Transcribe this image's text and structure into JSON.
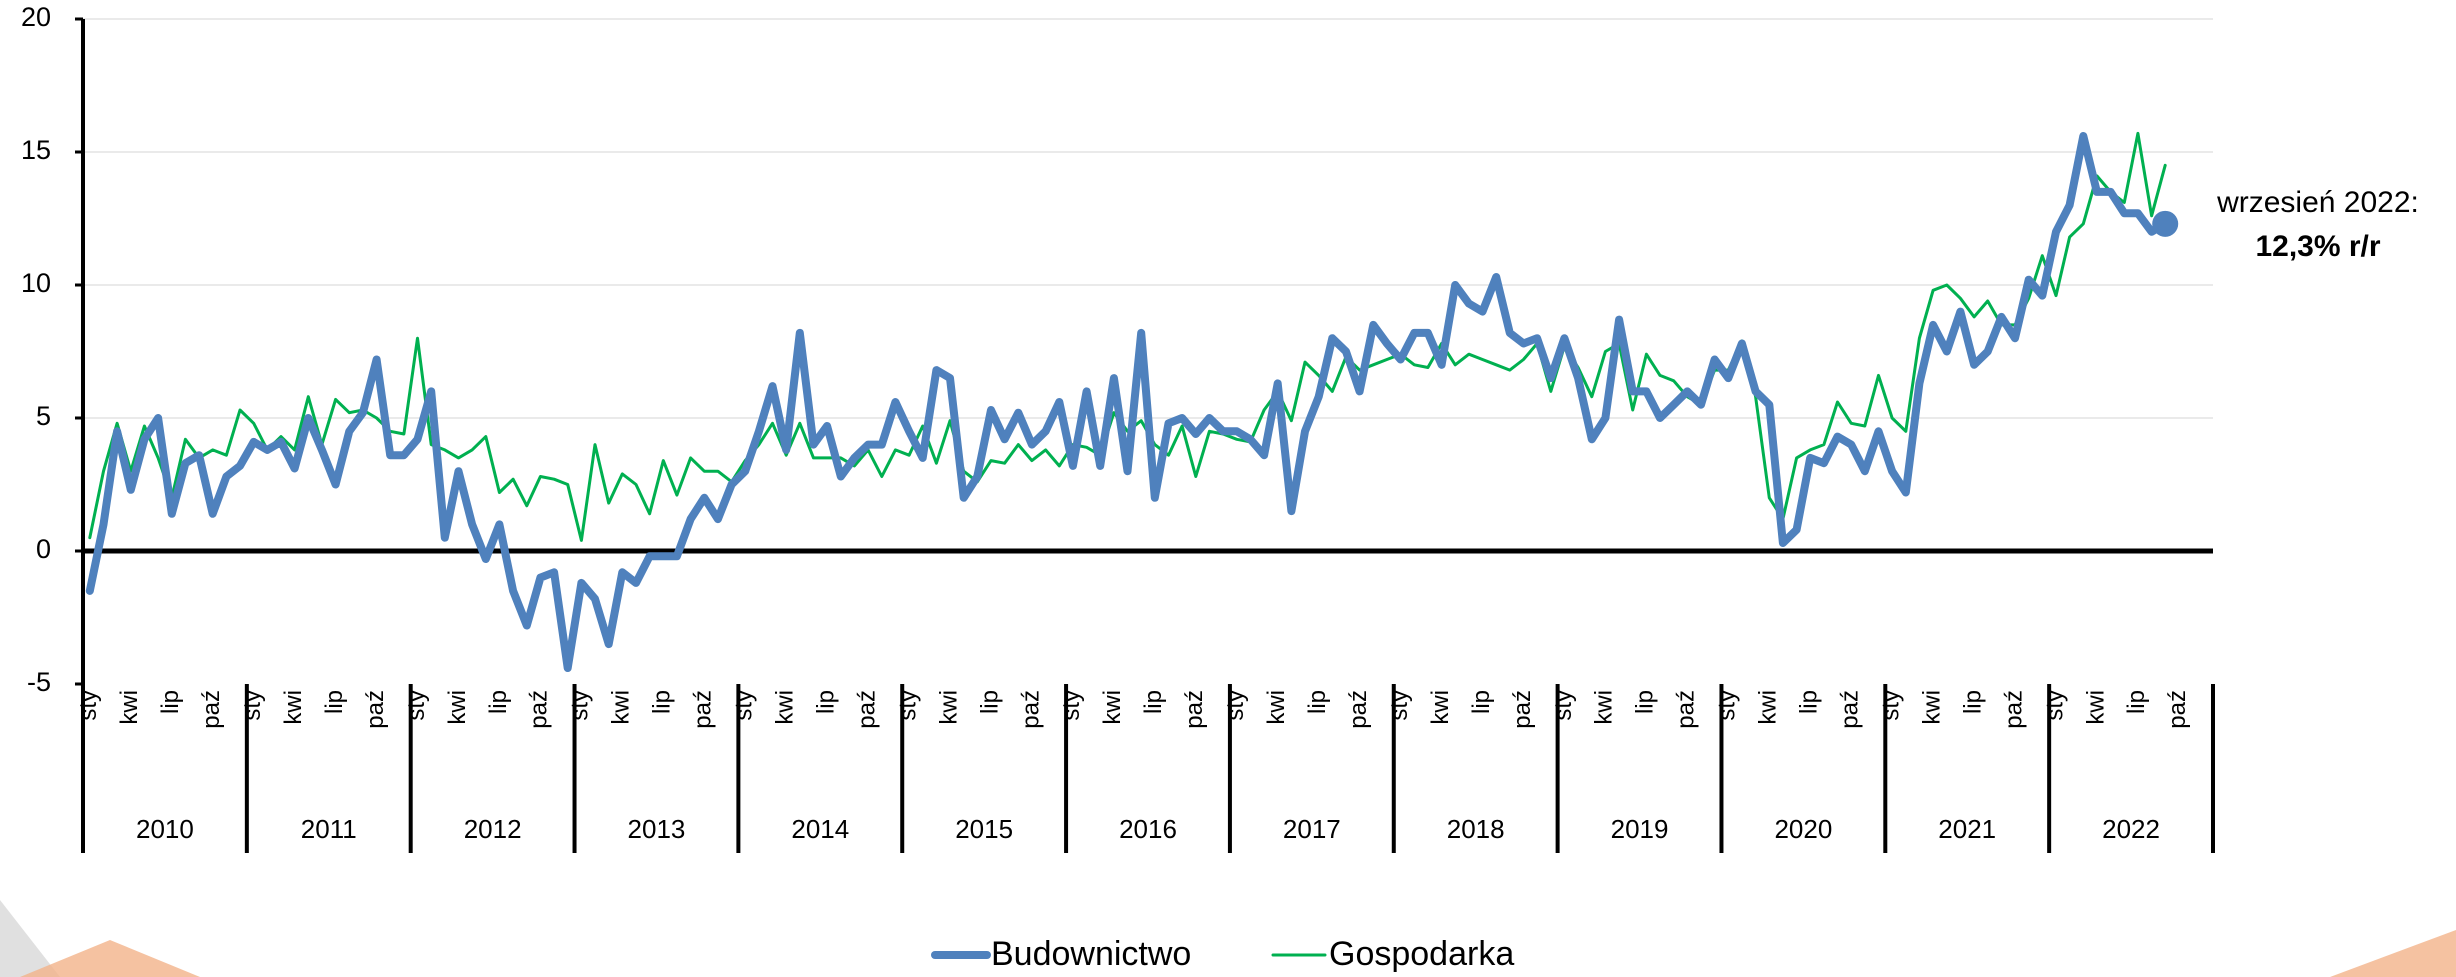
{
  "chart_data": {
    "type": "line",
    "categories": [
      "sty",
      null,
      null,
      "kwi",
      null,
      null,
      "lip",
      null,
      null,
      "paź",
      null,
      null,
      "sty",
      null,
      null,
      "kwi",
      null,
      null,
      "lip",
      null,
      null,
      "paź",
      null,
      null,
      "sty",
      null,
      null,
      "kwi",
      null,
      null,
      "lip",
      null,
      null,
      "paź",
      null,
      null,
      "sty",
      null,
      null,
      "kwi",
      null,
      null,
      "lip",
      null,
      null,
      "paź",
      null,
      null,
      "sty",
      null,
      null,
      "kwi",
      null,
      null,
      "lip",
      null,
      null,
      "paź",
      null,
      null,
      "sty",
      null,
      null,
      "kwi",
      null,
      null,
      "lip",
      null,
      null,
      "paź",
      null,
      null,
      "sty",
      null,
      null,
      "kwi",
      null,
      null,
      "lip",
      null,
      null,
      "paź",
      null,
      null,
      "sty",
      null,
      null,
      "kwi",
      null,
      null,
      "lip",
      null,
      null,
      "paź",
      null,
      null,
      "sty",
      null,
      null,
      "kwi",
      null,
      null,
      "lip",
      null,
      null,
      "paź",
      null,
      null,
      "sty",
      null,
      null,
      "kwi",
      null,
      null,
      "lip",
      null,
      null,
      "paź",
      null,
      null,
      "sty",
      null,
      null,
      "kwi",
      null,
      null,
      "lip",
      null,
      null,
      "paź",
      null,
      null,
      "sty",
      null,
      null,
      "kwi",
      null,
      null,
      "lip",
      null,
      null,
      "paź",
      null,
      null,
      "sty",
      null,
      null,
      "kwi",
      null,
      null,
      "lip",
      null,
      null,
      "paź",
      null,
      null
    ],
    "year_groups": [
      "2010",
      "2011",
      "2012",
      "2013",
      "2014",
      "2015",
      "2016",
      "2017",
      "2018",
      "2019",
      "2020",
      "2021",
      "2022"
    ],
    "series": [
      {
        "name": "Budownictwo",
        "color": "#4f81bd",
        "values": [
          -1.5,
          1.0,
          4.5,
          2.3,
          4.2,
          5.0,
          1.4,
          3.3,
          3.6,
          1.4,
          2.8,
          3.2,
          4.1,
          3.8,
          4.1,
          3.1,
          5.0,
          3.8,
          2.5,
          4.5,
          5.2,
          7.2,
          3.6,
          3.6,
          4.2,
          6.0,
          0.5,
          3.0,
          1.0,
          -0.3,
          1.0,
          -1.5,
          -2.8,
          -1.0,
          -0.8,
          -4.4,
          -1.2,
          -1.8,
          -3.5,
          -0.8,
          -1.2,
          -0.2,
          -0.2,
          -0.2,
          1.2,
          2.0,
          1.2,
          2.5,
          3.0,
          4.5,
          6.2,
          3.8,
          8.2,
          4.0,
          4.7,
          2.8,
          3.5,
          4.0,
          4.0,
          5.6,
          4.5,
          3.5,
          6.8,
          6.5,
          2.0,
          2.8,
          5.3,
          4.2,
          5.2,
          4.0,
          4.5,
          5.6,
          3.2,
          6.0,
          3.2,
          6.5,
          3.0,
          8.2,
          2.0,
          4.8,
          5.0,
          4.4,
          5.0,
          4.5,
          4.5,
          4.2,
          3.6,
          6.3,
          1.5,
          4.5,
          5.8,
          8.0,
          7.5,
          6.0,
          8.5,
          7.8,
          7.2,
          8.2,
          8.2,
          7.0,
          10.0,
          9.3,
          9.0,
          10.3,
          8.2,
          7.8,
          8.0,
          6.5,
          8.0,
          6.5,
          4.2,
          5.0,
          8.7,
          6.0,
          6.0,
          5.0,
          5.5,
          6.0,
          5.5,
          7.2,
          6.5,
          7.8,
          6.0,
          5.5,
          0.3,
          0.8,
          3.5,
          3.3,
          4.3,
          4.0,
          3.0,
          4.5,
          3.0,
          2.2,
          6.3,
          8.5,
          7.5,
          9.0,
          7.0,
          7.5,
          8.8,
          8.0,
          10.2,
          9.6,
          12.0,
          13.0,
          15.6,
          13.5,
          13.5,
          12.7,
          12.7,
          12.0,
          12.3,
          null,
          null,
          null
        ]
      },
      {
        "name": "Gospodarka",
        "color": "#00b050",
        "values": [
          0.5,
          3.0,
          4.8,
          3.0,
          4.7,
          3.5,
          2.0,
          4.2,
          3.5,
          3.8,
          3.6,
          5.3,
          4.8,
          3.8,
          4.3,
          3.8,
          5.8,
          4.0,
          5.7,
          5.2,
          5.3,
          5.0,
          4.5,
          4.4,
          8.0,
          4.0,
          3.8,
          3.5,
          3.8,
          4.3,
          2.2,
          2.7,
          1.7,
          2.8,
          2.7,
          2.5,
          0.4,
          4.0,
          1.8,
          2.9,
          2.5,
          1.4,
          3.4,
          2.1,
          3.5,
          3.0,
          3.0,
          2.6,
          3.4,
          4.0,
          4.8,
          3.6,
          4.8,
          3.5,
          3.5,
          3.5,
          3.2,
          3.8,
          2.8,
          3.8,
          3.6,
          4.7,
          3.3,
          4.9,
          3.0,
          2.6,
          3.4,
          3.3,
          4.0,
          3.4,
          3.8,
          3.2,
          4.0,
          3.9,
          3.6,
          5.2,
          4.5,
          4.9,
          4.0,
          3.6,
          4.7,
          2.8,
          4.5,
          4.4,
          4.2,
          4.1,
          5.3,
          6.0,
          4.9,
          7.1,
          6.6,
          6.0,
          7.3,
          6.8,
          7.0,
          7.2,
          7.4,
          7.0,
          6.9,
          7.8,
          7.0,
          7.4,
          7.2,
          7.0,
          6.8,
          7.2,
          7.8,
          6.0,
          7.7,
          6.9,
          5.8,
          7.5,
          7.8,
          5.3,
          7.4,
          6.6,
          6.4,
          5.8,
          5.5,
          6.8,
          6.8,
          7.9,
          5.8,
          2.0,
          1.2,
          3.5,
          3.8,
          4.0,
          5.6,
          4.8,
          4.7,
          6.6,
          5.0,
          4.5,
          8.0,
          9.8,
          10.0,
          9.5,
          8.8,
          9.4,
          8.5,
          8.5,
          9.5,
          11.1,
          9.6,
          11.8,
          12.3,
          14.1,
          13.5,
          13.1,
          15.7,
          12.6,
          14.5,
          null,
          null,
          null
        ]
      }
    ],
    "ylim": [
      -5,
      20
    ],
    "yticks": [
      -5,
      0,
      5,
      10,
      15,
      20
    ],
    "grid": true,
    "annotation": {
      "lines": [
        "wrzesień 2022:",
        "12,3% r/r"
      ],
      "color": "#ff0000"
    }
  }
}
